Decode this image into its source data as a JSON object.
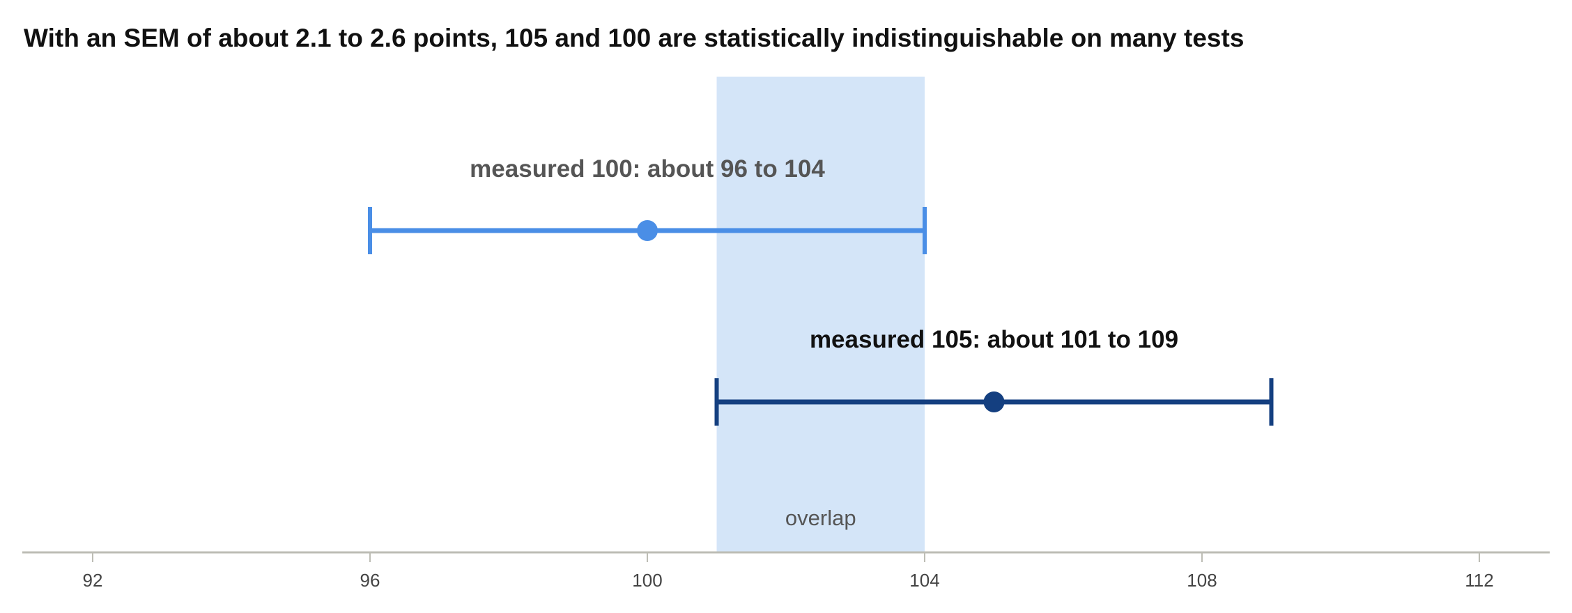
{
  "chart_data": {
    "type": "interval",
    "title": "With an SEM of about 2.1 to 2.6 points, 105 and 100 are statistically indistinguishable on many tests",
    "xlim": [
      91,
      113
    ],
    "x_ticks": [
      92,
      96,
      100,
      104,
      108,
      112
    ],
    "grid": false,
    "intervals": [
      {
        "label": "measured 100: about 96 to 104",
        "center": 100,
        "low": 96,
        "high": 104,
        "color": "#4a8ee6",
        "label_color": "#555555"
      },
      {
        "label": "measured 105: about 101 to 109",
        "center": 105,
        "low": 101,
        "high": 109,
        "color": "#143f80",
        "label_color": "#111111"
      }
    ],
    "overlap": {
      "label": "overlap",
      "low": 101,
      "high": 104,
      "color": "#d4e5f8"
    }
  }
}
